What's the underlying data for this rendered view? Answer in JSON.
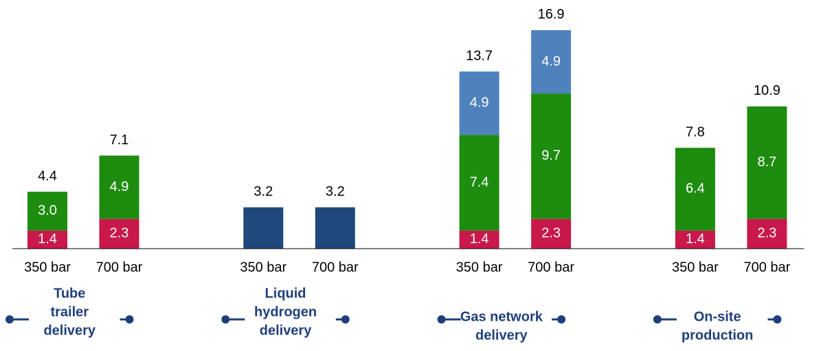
{
  "chart_data": {
    "type": "stacked_bar",
    "categories": [
      "350 bar",
      "700 bar",
      "350 bar",
      "700 bar",
      "350 bar",
      "700 bar",
      "350 bar",
      "700 bar"
    ],
    "groups": [
      {
        "lines": [
          "Tube",
          "trailer",
          "delivery"
        ],
        "size": 2
      },
      {
        "lines": [
          "Liquid",
          "hydrogen",
          "delivery"
        ],
        "size": 2
      },
      {
        "lines": [
          "Gas network",
          "delivery"
        ],
        "size": 2
      },
      {
        "lines": [
          "On-site",
          "production"
        ],
        "size": 2
      }
    ],
    "series": [
      {
        "color": "#c9184a",
        "values": [
          1.4,
          2.3,
          null,
          null,
          1.4,
          2.3,
          1.4,
          2.3
        ]
      },
      {
        "color": "#1e8c0f",
        "values": [
          3.0,
          4.9,
          null,
          null,
          7.4,
          9.7,
          6.4,
          8.7
        ],
        "value_labels": [
          "3.0",
          "4.9",
          null,
          null,
          "7.4",
          "9.7",
          "6.4",
          "8.7"
        ]
      },
      {
        "color": "#4f81bd",
        "values": [
          null,
          null,
          null,
          null,
          4.9,
          4.9,
          null,
          null
        ]
      },
      {
        "color": "#1f497d",
        "values": [
          null,
          null,
          3.2,
          3.2,
          null,
          null,
          null,
          null
        ],
        "show_labels": false
      }
    ],
    "totals": [
      4.4,
      7.1,
      3.2,
      3.2,
      13.7,
      16.9,
      7.8,
      10.9
    ],
    "ylim": [
      0,
      17
    ]
  }
}
